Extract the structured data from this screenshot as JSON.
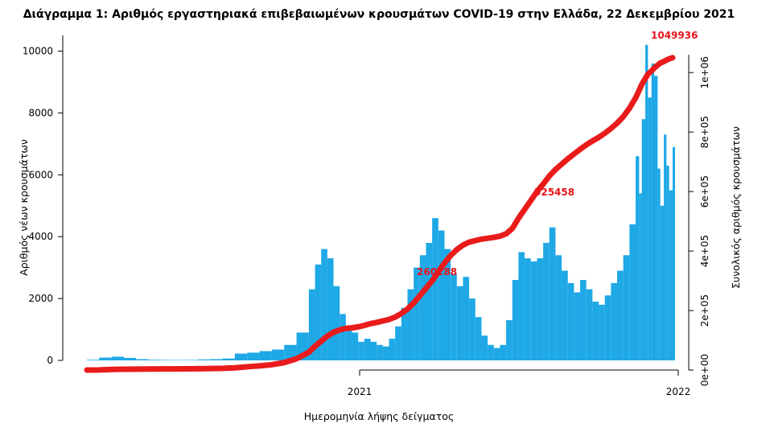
{
  "chart_data": {
    "type": "bar",
    "title": "Διάγραμμα 1: Αριθμός εργαστηριακά επιβεβαιωμένων κρουσμάτων COVID-19 στην Ελλάδα, 22 Δεκεμβρίου 2021",
    "xlabel": "Ημερομηνία λήψης δείγματος",
    "ylabel": "Αριθμός νέων κρουσμάτων",
    "y2label": "Συνολικός αριθμός κρουσμάτων",
    "x_ticks": [
      "2021",
      "2022"
    ],
    "y_ticks": [
      "0",
      "2000",
      "4000",
      "6000",
      "8000",
      "10000"
    ],
    "y2_ticks": [
      "0e+00",
      "2e+05",
      "4e+05",
      "6e+05",
      "8e+05",
      "1e+06"
    ],
    "ylim": [
      0,
      10300
    ],
    "y2lim": [
      0,
      1060000
    ],
    "grid": false,
    "x": [
      "2020-02-26",
      "2020-03-11",
      "2020-03-25",
      "2020-04-08",
      "2020-04-22",
      "2020-05-06",
      "2020-05-20",
      "2020-06-03",
      "2020-06-17",
      "2020-07-01",
      "2020-07-15",
      "2020-07-29",
      "2020-08-12",
      "2020-08-26",
      "2020-09-09",
      "2020-09-23",
      "2020-10-07",
      "2020-10-21",
      "2020-11-04",
      "2020-11-11",
      "2020-11-18",
      "2020-11-25",
      "2020-12-02",
      "2020-12-09",
      "2020-12-16",
      "2020-12-23",
      "2020-12-30",
      "2021-01-06",
      "2021-01-13",
      "2021-01-20",
      "2021-01-27",
      "2021-02-03",
      "2021-02-10",
      "2021-02-17",
      "2021-02-24",
      "2021-03-03",
      "2021-03-10",
      "2021-03-17",
      "2021-03-24",
      "2021-03-31",
      "2021-04-07",
      "2021-04-14",
      "2021-04-21",
      "2021-04-28",
      "2021-05-05",
      "2021-05-12",
      "2021-05-19",
      "2021-05-26",
      "2021-06-02",
      "2021-06-09",
      "2021-06-16",
      "2021-06-23",
      "2021-06-30",
      "2021-07-07",
      "2021-07-14",
      "2021-07-21",
      "2021-07-28",
      "2021-08-04",
      "2021-08-11",
      "2021-08-18",
      "2021-08-25",
      "2021-09-01",
      "2021-09-08",
      "2021-09-15",
      "2021-09-22",
      "2021-09-29",
      "2021-10-06",
      "2021-10-13",
      "2021-10-20",
      "2021-10-27",
      "2021-11-03",
      "2021-11-10",
      "2021-11-14",
      "2021-11-17",
      "2021-11-21",
      "2021-11-24",
      "2021-11-28",
      "2021-12-01",
      "2021-12-05",
      "2021-12-08",
      "2021-12-12",
      "2021-12-15",
      "2021-12-18",
      "2021-12-22"
    ],
    "values": [
      20,
      90,
      120,
      80,
      40,
      20,
      15,
      12,
      15,
      30,
      40,
      60,
      220,
      250,
      300,
      350,
      500,
      900,
      2300,
      3100,
      3600,
      3300,
      2400,
      1500,
      1100,
      900,
      600,
      700,
      600,
      500,
      450,
      700,
      1100,
      1700,
      2300,
      3000,
      3400,
      3800,
      4600,
      4200,
      3600,
      2800,
      2400,
      2700,
      2000,
      1400,
      800,
      500,
      400,
      500,
      1300,
      2600,
      3500,
      3300,
      3200,
      3300,
      3800,
      4300,
      3400,
      2900,
      2500,
      2200,
      2600,
      2300,
      1900,
      1800,
      2100,
      2500,
      2900,
      3400,
      4400,
      6600,
      5400,
      7800,
      10200,
      8500,
      9600,
      9200,
      6200,
      5000,
      7300,
      6300,
      5500,
      6900
    ],
    "series": [
      {
        "values": [
          0,
          400,
          2000,
          2700,
          3000,
          3300,
          3600,
          3800,
          4000,
          4500,
          5000,
          5600,
          7500,
          11000,
          14000,
          18000,
          25000,
          38000,
          60000,
          80000,
          97000,
          114000,
          127000,
          135000,
          140000,
          142000,
          145000,
          150000,
          156000,
          160000,
          165000,
          170000,
          178000,
          190000,
          205000,
          225000,
          250000,
          275000,
          300000,
          330000,
          360000,
          385000,
          405000,
          420000,
          430000,
          435000,
          440000,
          443000,
          446000,
          450000,
          458000,
          476000,
          510000,
          540000,
          570000,
          600000,
          625000,
          652000,
          674000,
          692000,
          710000,
          726000,
          742000,
          757000,
          770000,
          782000,
          796000,
          812000,
          830000,
          852000,
          880000,
          915000,
          940000,
          960000,
          980000,
          995000,
          1005000,
          1015000,
          1025000,
          1032000,
          1037000,
          1042000,
          1046000,
          1049936
        ]
      }
    ],
    "annotations": [
      "1049936",
      "525458",
      "260288"
    ],
    "bar_color": "#1ea8e6",
    "line_color": "#ea1b1b"
  }
}
